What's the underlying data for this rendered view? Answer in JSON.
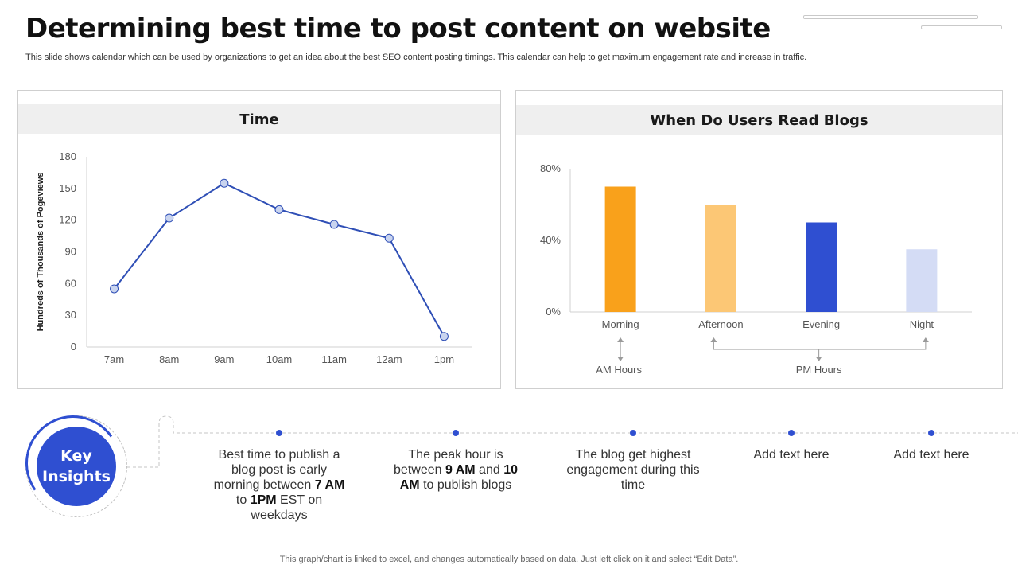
{
  "title": "Determining best time to post content on website",
  "subtitle": "This slide shows calendar which can be used by organizations to get an idea about the best SEO content posting timings. This calendar can help to get maximum engagement rate and increase in traffic.",
  "chart_data": [
    {
      "type": "line",
      "title": "Time",
      "xlabel": "",
      "ylabel": "Hundreds of Thousands of Pogeviews",
      "categories": [
        "7am",
        "8am",
        "9am",
        "10am",
        "11am",
        "12am",
        "1pm"
      ],
      "values": [
        55,
        122,
        155,
        130,
        116,
        103,
        10
      ],
      "ylim": [
        0,
        180
      ],
      "yticks": [
        0,
        30,
        60,
        90,
        120,
        150,
        180
      ],
      "color": "#2f4fb6",
      "marker_fill": "#c9d4ef",
      "grid": false
    },
    {
      "type": "bar",
      "title": "When Do Users Read Blogs",
      "xlabel": "",
      "ylabel": "",
      "categories": [
        "Morning",
        "Afternoon",
        "Evening",
        "Night"
      ],
      "values": [
        70,
        60,
        50,
        35
      ],
      "ylim": [
        0,
        80
      ],
      "yticks": [
        "0%",
        "40%",
        "80%"
      ],
      "colors": [
        "#f9a11b",
        "#fcc775",
        "#2f4fd1",
        "#d4dcf5"
      ],
      "annotations": [
        "AM Hours",
        "PM Hours"
      ],
      "grid": false
    }
  ],
  "key_insights": {
    "label_line1": "Key",
    "label_line2": "Insights",
    "accent": "#2f4fd1",
    "items": [
      [
        "Best time to publish a blog post is early morning between ",
        "7 AM",
        " to ",
        "1PM",
        " EST on weekdays"
      ],
      [
        "The peak hour is between ",
        "9 AM",
        " and ",
        "10 AM",
        " to publish blogs"
      ],
      [
        "The blog get highest engagement during this time"
      ],
      [
        "Add text here"
      ],
      [
        "Add text here"
      ]
    ]
  },
  "footer": "This graph/chart is linked to excel,  and changes automatically based on data. Just left click on it and select “Edit Data”."
}
